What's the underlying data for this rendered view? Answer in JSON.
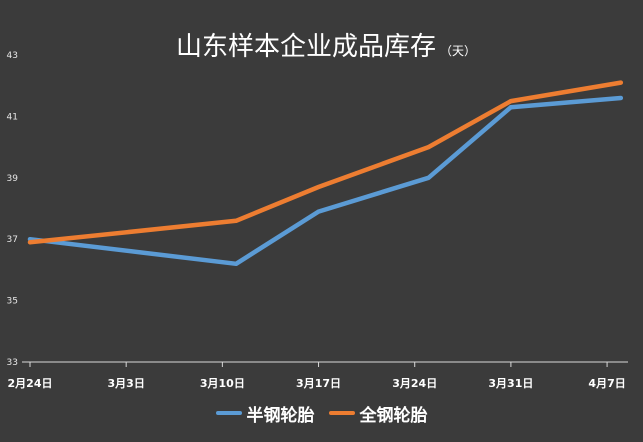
{
  "chart_data": {
    "type": "line",
    "title": "山东样本企业成品库存",
    "title_unit": "（天）",
    "xlabel": "",
    "ylabel": "",
    "x_ticks": [
      "2月24日",
      "3月3日",
      "3月10日",
      "3月17日",
      "3月24日",
      "3月31日",
      "4月7日"
    ],
    "y_ticks": [
      43,
      41,
      39,
      37,
      35,
      33
    ],
    "ylim": [
      33,
      43
    ],
    "grid": false,
    "legend": "bottom",
    "background": "#3b3b3b",
    "x": [
      "2月24日",
      "3月11日",
      "3月17日",
      "3月25日",
      "3月31日",
      "4月8日"
    ],
    "series": [
      {
        "name": "半钢轮胎",
        "color": "#5b9bd5",
        "values": [
          37.0,
          36.2,
          37.9,
          39.0,
          41.3,
          41.6
        ]
      },
      {
        "name": "全钢轮胎",
        "color": "#ed7d31",
        "values": [
          36.9,
          37.6,
          38.7,
          40.0,
          41.5,
          42.1
        ]
      }
    ]
  }
}
